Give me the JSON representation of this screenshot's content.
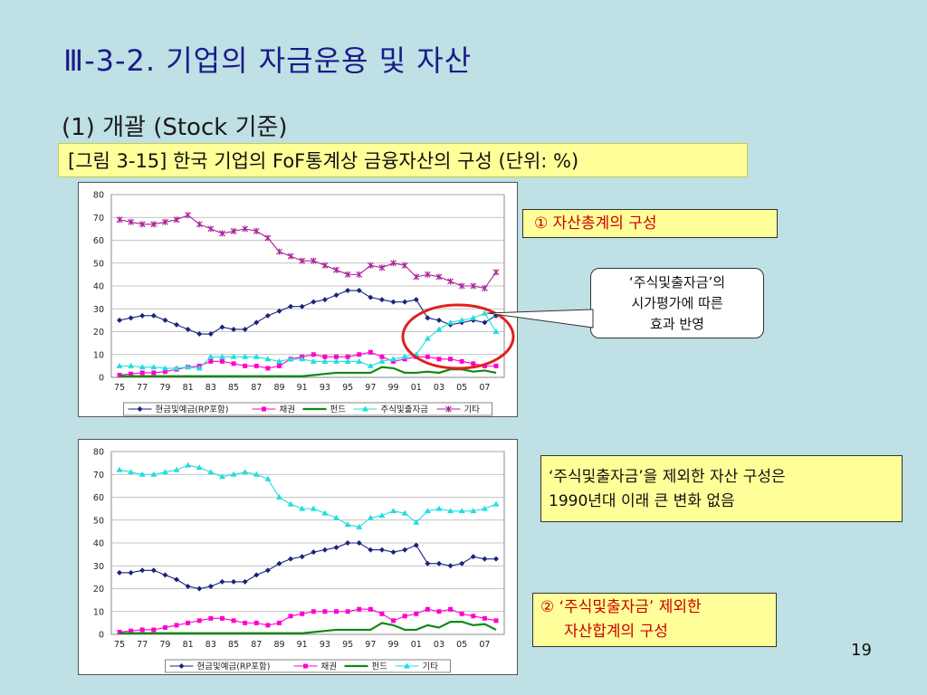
{
  "slide": {
    "title": "Ⅲ-3-2. 기업의 자금운용 및 자산",
    "subtitle": "(1) 개괄 (Stock 기준)",
    "caption": "[그림 3-15] 한국 기업의 FoF통계상 금융자산의 구성 (단위: %)",
    "page_number": "19"
  },
  "notes": {
    "note1": "① 자산총계의 구성",
    "callout_line1": "‘주식및출자금’의",
    "callout_line2": "시가평가에 따른",
    "callout_line3": "효과 반영",
    "note2_line1": "‘주식및출자금’을 제외한 자산 구성은",
    "note2_line2": "1990년대 이래 큰 변화 없음",
    "note3_line1": "② ‘주식및출자금’ 제외한",
    "note3_line2": "자산합계의 구성"
  },
  "colors": {
    "cash": "#1a237e",
    "bonds": "#ff00cc",
    "funds": "#118811",
    "stocks": "#22dddd",
    "other": "#aa2299",
    "highlight_ellipse": "#e02020"
  },
  "chart_data": [
    {
      "type": "line",
      "x": [
        "75",
        "76",
        "77",
        "78",
        "79",
        "80",
        "81",
        "82",
        "83",
        "84",
        "85",
        "86",
        "87",
        "88",
        "89",
        "90",
        "91",
        "92",
        "93",
        "94",
        "95",
        "96",
        "97",
        "98",
        "99",
        "00",
        "01",
        "02",
        "03",
        "04",
        "05",
        "06",
        "07",
        "08"
      ],
      "xtick_labels": [
        "75",
        "77",
        "79",
        "81",
        "83",
        "85",
        "87",
        "89",
        "91",
        "93",
        "95",
        "97",
        "99",
        "01",
        "03",
        "05",
        "07"
      ],
      "ylim": [
        0,
        80
      ],
      "yticks": [
        0,
        10,
        20,
        30,
        40,
        50,
        60,
        70,
        80
      ],
      "grid": true,
      "legend_position": "bottom",
      "series": [
        {
          "name": "현금및예금(RP포함)",
          "color_key": "cash",
          "marker": "diamond",
          "values": [
            25,
            26,
            27,
            27,
            25,
            23,
            21,
            19,
            19,
            22,
            21,
            21,
            24,
            27,
            29,
            31,
            31,
            33,
            34,
            36,
            38,
            38,
            35,
            34,
            33,
            33,
            34,
            26,
            25,
            23,
            24,
            25,
            24,
            27
          ]
        },
        {
          "name": "채권",
          "color_key": "bonds",
          "marker": "square",
          "values": [
            1,
            1.5,
            2,
            2,
            2.5,
            3.5,
            4.5,
            5,
            7,
            7,
            6,
            5,
            5,
            4,
            5,
            8,
            9,
            10,
            9,
            9,
            9,
            10,
            11,
            9,
            7,
            8,
            9,
            9,
            8,
            8,
            7,
            6,
            5,
            5
          ]
        },
        {
          "name": "펀드",
          "color_key": "funds",
          "marker": "none",
          "values": [
            0.5,
            0.5,
            0.5,
            0.5,
            0.5,
            0.5,
            0.5,
            0.5,
            0.5,
            0.5,
            0.5,
            0.5,
            0.5,
            0.5,
            0.5,
            0.5,
            0.5,
            1,
            1.5,
            2,
            2,
            2,
            2,
            4.5,
            4,
            2,
            2,
            2.5,
            2,
            3.5,
            3.5,
            2.5,
            3,
            2
          ]
        },
        {
          "name": "주식및출자금",
          "color_key": "stocks",
          "marker": "triangle",
          "values": [
            5,
            5,
            4.5,
            4.5,
            4,
            4,
            4.5,
            4,
            9,
            9,
            9,
            9,
            9,
            8,
            7,
            8,
            8,
            7,
            7,
            7,
            7,
            7,
            5,
            7,
            8,
            9,
            10,
            17,
            21,
            24,
            25,
            26,
            28,
            20
          ]
        },
        {
          "name": "기타",
          "color_key": "other",
          "marker": "star",
          "values": [
            69,
            68,
            67,
            67,
            68,
            69,
            71,
            67,
            65,
            63,
            64,
            65,
            64,
            61,
            55,
            53,
            51,
            51,
            49,
            47,
            45,
            45,
            49,
            48,
            50,
            49,
            44,
            45,
            44,
            42,
            40,
            40,
            39,
            46
          ]
        }
      ]
    },
    {
      "type": "line",
      "x": [
        "75",
        "76",
        "77",
        "78",
        "79",
        "80",
        "81",
        "82",
        "83",
        "84",
        "85",
        "86",
        "87",
        "88",
        "89",
        "90",
        "91",
        "92",
        "93",
        "94",
        "95",
        "96",
        "97",
        "98",
        "99",
        "00",
        "01",
        "02",
        "03",
        "04",
        "05",
        "06",
        "07",
        "08"
      ],
      "xtick_labels": [
        "75",
        "77",
        "79",
        "81",
        "83",
        "85",
        "87",
        "89",
        "91",
        "93",
        "95",
        "97",
        "99",
        "01",
        "03",
        "05",
        "07"
      ],
      "ylim": [
        0,
        80
      ],
      "yticks": [
        0,
        10,
        20,
        30,
        40,
        50,
        60,
        70,
        80
      ],
      "grid": true,
      "legend_position": "bottom",
      "series": [
        {
          "name": "현금및예금(RP포함)",
          "color_key": "cash",
          "marker": "diamond",
          "values": [
            27,
            27,
            28,
            28,
            26,
            24,
            21,
            20,
            21,
            23,
            23,
            23,
            26,
            28,
            31,
            33,
            34,
            36,
            37,
            38,
            40,
            40,
            37,
            37,
            36,
            37,
            39,
            31,
            31,
            30,
            31,
            34,
            33,
            33
          ]
        },
        {
          "name": "채권",
          "color_key": "bonds",
          "marker": "square",
          "values": [
            1,
            1.5,
            2,
            2,
            3,
            4,
            5,
            6,
            7,
            7,
            6,
            5,
            5,
            4,
            5,
            8,
            9,
            10,
            10,
            10,
            10,
            11,
            11,
            9,
            6,
            8,
            9,
            11,
            10,
            11,
            9,
            8,
            7,
            6
          ]
        },
        {
          "name": "펀드",
          "color_key": "funds",
          "marker": "none",
          "values": [
            0.5,
            0.5,
            0.5,
            0.5,
            0.5,
            0.5,
            0.5,
            0.5,
            0.5,
            0.5,
            0.5,
            0.5,
            0.5,
            0.5,
            0.5,
            0.5,
            0.5,
            1,
            1.5,
            2,
            2,
            2,
            2,
            5,
            4,
            2,
            2,
            4,
            3,
            5.5,
            5.5,
            4,
            4.5,
            2
          ]
        },
        {
          "name": "기타",
          "color_key": "stocks",
          "marker": "triangle",
          "values": [
            72,
            71,
            70,
            70,
            71,
            72,
            74,
            73,
            71,
            69,
            70,
            71,
            70,
            68,
            60,
            57,
            55,
            55,
            53,
            51,
            48,
            47,
            51,
            52,
            54,
            53,
            49,
            54,
            55,
            54,
            54,
            54,
            55,
            57
          ]
        }
      ]
    }
  ]
}
